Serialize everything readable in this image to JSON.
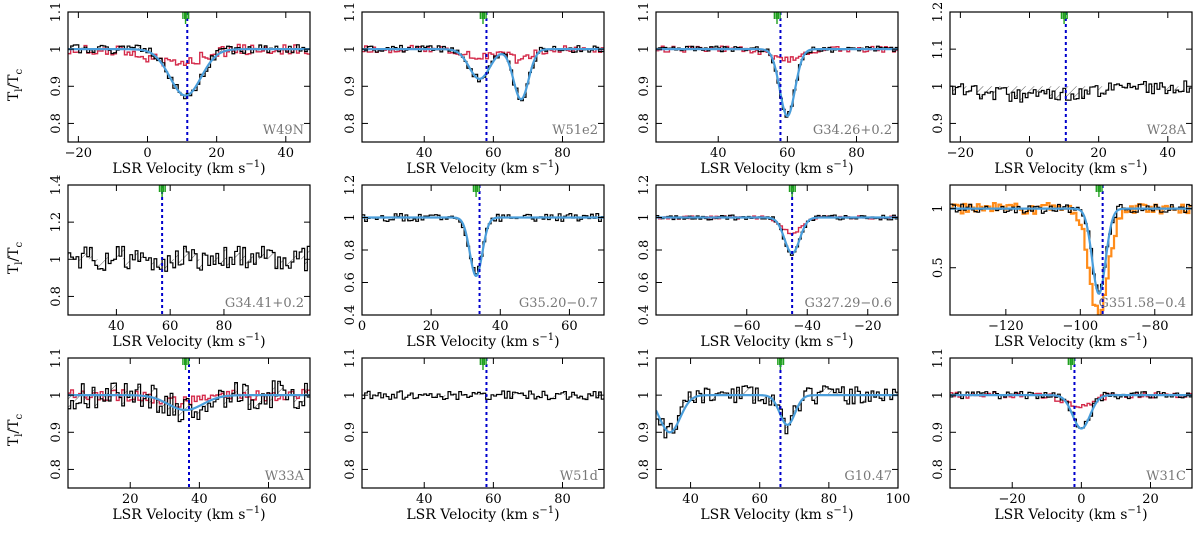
{
  "figure": {
    "ylabel_main": "T",
    "ylabel_sub_l": "l",
    "ylabel_sep": "/T",
    "ylabel_sub_c": "c"
  },
  "chart_data": [
    {
      "type": "line",
      "source": "W49N",
      "xlabel_main": "LSR Velocity (km s",
      "xlabel_exp": "−1",
      "xlabel_close": ")",
      "xlim": [
        -23,
        47
      ],
      "ylim": [
        0.75,
        1.1
      ],
      "xticks": [
        -20,
        0,
        20,
        40
      ],
      "yticks": [
        0.8,
        0.9,
        1,
        1.1
      ],
      "vline": 11.5,
      "arrows": [
        11
      ],
      "comps": [
        [
          11,
          -0.125,
          4.5
        ]
      ],
      "red": {
        "comps": [
          [
            8,
            -0.04,
            7
          ]
        ],
        "noise": 0.015
      },
      "noise": 0.012,
      "seed": 1
    },
    {
      "type": "line",
      "source": "W51e2",
      "xlabel_main": "LSR Velocity (km s",
      "xlabel_exp": "−1",
      "xlabel_close": ")",
      "xlim": [
        22,
        92
      ],
      "ylim": [
        0.75,
        1.1
      ],
      "xticks": [
        40,
        60,
        80
      ],
      "yticks": [
        0.8,
        0.9,
        1,
        1.1
      ],
      "vline": 58,
      "arrows": [
        57
      ],
      "comps": [
        [
          56,
          -0.08,
          3
        ],
        [
          68,
          -0.135,
          2.2
        ]
      ],
      "red": {
        "comps": [
          [
            56,
            -0.02,
            4
          ],
          [
            68,
            -0.03,
            3
          ]
        ],
        "noise": 0.01
      },
      "noise": 0.01,
      "seed": 2
    },
    {
      "type": "line",
      "source": "G34.26+0.2",
      "xlabel_main": "LSR Velocity (km s",
      "xlabel_exp": "−1",
      "xlabel_close": ")",
      "xlim": [
        22,
        92
      ],
      "ylim": [
        0.75,
        1.1
      ],
      "xticks": [
        40,
        60,
        80
      ],
      "yticks": [
        0.8,
        0.9,
        1,
        1.1
      ],
      "vline": 58,
      "arrows": [
        57
      ],
      "comps": [
        [
          60,
          -0.18,
          2.2
        ]
      ],
      "red": {
        "comps": [
          [
            59,
            -0.03,
            4
          ]
        ],
        "noise": 0.008
      },
      "noise": 0.008,
      "seed": 3
    },
    {
      "type": "line",
      "source": "W28A",
      "xlabel_main": "LSR Velocity (km s",
      "xlabel_exp": "−1",
      "xlabel_close": ")",
      "xlim": [
        -23,
        47
      ],
      "ylim": [
        0.85,
        1.2
      ],
      "xticks": [
        -20,
        0,
        20,
        40
      ],
      "yticks": [
        0.9,
        1,
        1.1,
        1.2
      ],
      "vline": 10.5,
      "arrows": [
        10
      ],
      "comps": [
        [
          0,
          -0.025,
          14
        ]
      ],
      "red": null,
      "blue": false,
      "noise": 0.02,
      "seed": 4
    },
    {
      "type": "line",
      "source": "G34.41+0.2",
      "xlabel_main": "LSR Velocity (km s",
      "xlabel_exp": "−1",
      "xlabel_close": ")",
      "xlim": [
        22,
        112
      ],
      "ylim": [
        0.7,
        1.4
      ],
      "xticks": [
        40,
        60,
        80
      ],
      "yticks": [
        0.8,
        1,
        1.2,
        1.4
      ],
      "vline": 57,
      "arrows": [
        57
      ],
      "comps": [],
      "red": null,
      "blue": false,
      "noise": 0.07,
      "seed": 5
    },
    {
      "type": "line",
      "source": "G35.20−0.7",
      "xlabel_main": "LSR Velocity (km s",
      "xlabel_exp": "−1",
      "xlabel_close": ")",
      "xlim": [
        0,
        70
      ],
      "ylim": [
        0.4,
        1.2
      ],
      "xticks": [
        0,
        20,
        40,
        60
      ],
      "yticks": [
        0.4,
        0.6,
        0.8,
        1,
        1.2
      ],
      "vline": 34,
      "arrows": [
        33
      ],
      "comps": [
        [
          33,
          -0.36,
          1.8
        ]
      ],
      "red": null,
      "noise": 0.025,
      "seed": 6
    },
    {
      "type": "line",
      "source": "G327.29−0.6",
      "xlabel_main": "LSR Velocity (km s",
      "xlabel_exp": "−1",
      "xlabel_close": ")",
      "xlim": [
        -90,
        -10
      ],
      "ylim": [
        0.4,
        1.2
      ],
      "xticks": [
        -60,
        -40,
        -20
      ],
      "yticks": [
        0.4,
        0.6,
        0.8,
        1,
        1.2
      ],
      "vline": -45,
      "arrows": [
        -45
      ],
      "comps": [
        [
          -45,
          -0.22,
          2.5
        ]
      ],
      "red": {
        "comps": [
          [
            -45,
            -0.1,
            3
          ]
        ],
        "noise": 0.01
      },
      "noise": 0.015,
      "seed": 7
    },
    {
      "type": "line",
      "source": "G351.58−0.4",
      "xlabel_main": "LSR Velocity (km s",
      "xlabel_exp": "−1",
      "xlabel_close": ")",
      "xlim": [
        -135,
        -70
      ],
      "ylim": [
        0.1,
        1.2
      ],
      "xticks": [
        -120,
        -100,
        -80
      ],
      "yticks": [
        0.5,
        1
      ],
      "vline": -94,
      "arrows": [
        -95
      ],
      "comps": [
        [
          -95,
          -0.72,
          1.8
        ]
      ],
      "red": null,
      "orange": {
        "comps": [
          [
            -95,
            -0.9,
            2.5
          ]
        ],
        "noise": 0.05
      },
      "noise": 0.04,
      "seed": 8
    },
    {
      "type": "line",
      "source": "W33A",
      "xlabel_main": "LSR Velocity (km s",
      "xlabel_exp": "−1",
      "xlabel_close": ")",
      "xlim": [
        2,
        72
      ],
      "ylim": [
        0.75,
        1.1
      ],
      "xticks": [
        20,
        40,
        60
      ],
      "yticks": [
        0.8,
        0.9,
        1,
        1.1
      ],
      "vline": 37,
      "arrows": [
        36
      ],
      "comps": [
        [
          36,
          -0.04,
          5
        ]
      ],
      "red": {
        "comps": [
          [
            34,
            -0.02,
            6
          ]
        ],
        "noise": 0.015
      },
      "noise": 0.04,
      "seed": 9
    },
    {
      "type": "line",
      "source": "W51d",
      "xlabel_main": "LSR Velocity (km s",
      "xlabel_exp": "−1",
      "xlabel_close": ")",
      "xlim": [
        22,
        92
      ],
      "ylim": [
        0.75,
        1.1
      ],
      "xticks": [
        40,
        60,
        80
      ],
      "yticks": [
        0.8,
        0.9,
        1,
        1.1
      ],
      "vline": 58,
      "arrows": [
        57
      ],
      "comps": [],
      "red": null,
      "blue": false,
      "noise": 0.012,
      "seed": 10
    },
    {
      "type": "line",
      "source": "G10.47",
      "xlabel_main": "LSR Velocity (km s",
      "xlabel_exp": "−1",
      "xlabel_close": ")",
      "xlim": [
        30,
        100
      ],
      "ylim": [
        0.75,
        1.1
      ],
      "xticks": [
        40,
        60,
        80,
        100
      ],
      "yticks": [
        0.8,
        0.9,
        1,
        1.1
      ],
      "vline": 66,
      "arrows": [
        66
      ],
      "comps": [
        [
          68,
          -0.08,
          2.2
        ],
        [
          34,
          -0.1,
          3
        ]
      ],
      "red": null,
      "noise": 0.025,
      "seed": 11
    },
    {
      "type": "line",
      "source": "W31C",
      "xlabel_main": "LSR Velocity (km s",
      "xlabel_exp": "−1",
      "xlabel_close": ")",
      "xlim": [
        -38,
        32
      ],
      "ylim": [
        0.75,
        1.1
      ],
      "xticks": [
        -20,
        0,
        20
      ],
      "yticks": [
        0.8,
        0.9,
        1,
        1.1
      ],
      "vline": -2,
      "arrows": [
        -3
      ],
      "comps": [
        [
          0,
          -0.09,
          2.5
        ]
      ],
      "red": {
        "comps": [
          [
            -1,
            -0.03,
            4
          ]
        ],
        "noise": 0.008
      },
      "noise": 0.01,
      "seed": 12
    }
  ],
  "colors": {
    "blue": "#4a9edb",
    "red": "#d42a4a",
    "orange": "#ff8c1a",
    "green": "#1fa01f",
    "vline": "#0000cc",
    "hatch": "#333333"
  }
}
